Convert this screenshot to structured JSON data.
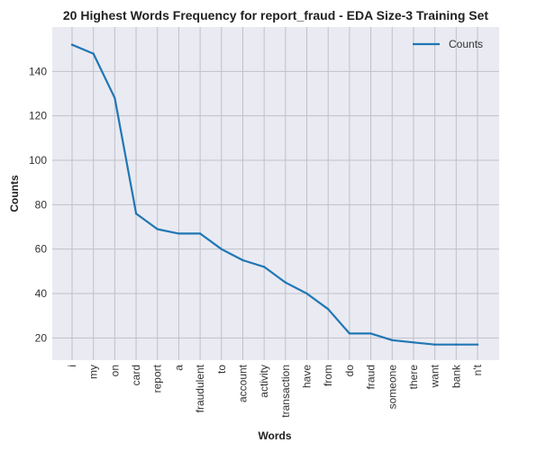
{
  "chart_data": {
    "type": "line",
    "title": "20 Highest Words Frequency for report_fraud - EDA Size-3 Training Set",
    "xlabel": "Words",
    "ylabel": "Counts",
    "categories": [
      "i",
      "my",
      "on",
      "card",
      "report",
      "a",
      "fraudulent",
      "to",
      "account",
      "activity",
      "transaction",
      "have",
      "from",
      "do",
      "fraud",
      "someone",
      "there",
      "want",
      "bank",
      "n't"
    ],
    "series": [
      {
        "name": "Counts",
        "values": [
          152,
          148,
          128,
          76,
          69,
          67,
          67,
          60,
          55,
          52,
          45,
          40,
          33,
          22,
          22,
          19,
          18,
          17,
          17,
          17
        ]
      }
    ],
    "ylim": [
      10,
      160
    ],
    "yticks": [
      20,
      40,
      60,
      80,
      100,
      120,
      140
    ],
    "grid": true,
    "legend": "top-right",
    "colors": {
      "line": "#1f77b4",
      "background": "#eaeaf2",
      "grid": "#c0c0c8"
    }
  }
}
